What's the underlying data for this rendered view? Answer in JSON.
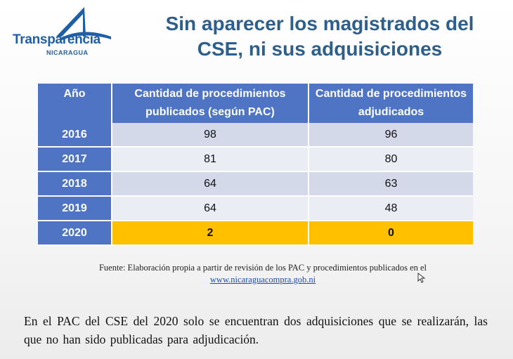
{
  "logo": {
    "text": "Transparencia",
    "subtitle": "NICARAGUA"
  },
  "title": "Sin aparecer los magistrados del CSE, ni sus adquisiciones",
  "table": {
    "headers": [
      "Año",
      "Cantidad de procedimientos publicados (según PAC)",
      "Cantidad de procedimientos adjudicados"
    ],
    "rows": [
      {
        "year": "2016",
        "published": "98",
        "awarded": "96"
      },
      {
        "year": "2017",
        "published": "81",
        "awarded": "80"
      },
      {
        "year": "2018",
        "published": "64",
        "awarded": "63"
      },
      {
        "year": "2019",
        "published": "64",
        "awarded": "48"
      },
      {
        "year": "2020",
        "published": "2",
        "awarded": "0"
      }
    ],
    "highlight_color": "#ffc000",
    "header_color": "#4f74c3"
  },
  "source": {
    "text": "Fuente: Elaboración propia a partir de revisión de los PAC y procedimientos publicados en el",
    "link": "www.nicaraguacompra.gob.ni"
  },
  "note": "En el PAC del CSE del 2020 solo se encuentran dos adquisiciones que se realizarán, las que no han sido publicadas para adjudicación."
}
